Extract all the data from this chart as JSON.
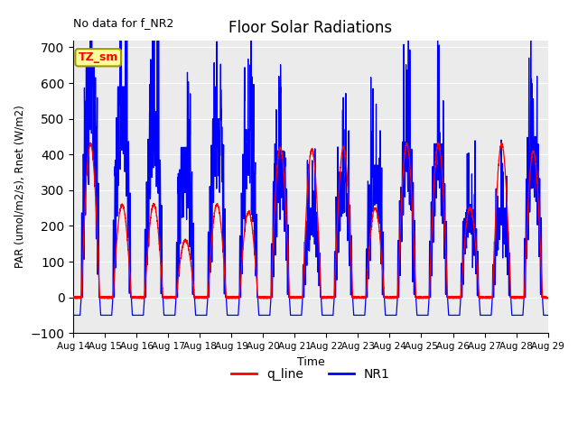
{
  "title": "Floor Solar Radiations",
  "top_left_text": "No data for f_NR2",
  "xlabel": "Time",
  "ylabel": "PAR (umol/m2/s), Rnet (W/m2)",
  "ylim": [
    -100,
    720
  ],
  "yticks": [
    -100,
    0,
    100,
    200,
    300,
    400,
    500,
    600,
    700
  ],
  "legend_entries": [
    "q_line",
    "NR1"
  ],
  "legend_colors": [
    "#ff0000",
    "#0000ff"
  ],
  "bg_color": "#ebebeb",
  "fig_bg": "#ffffff",
  "legend_box_label": "TZ_sm",
  "legend_box_facecolor": "#ffff99",
  "legend_box_edgecolor": "#999900",
  "start_day": 14,
  "end_day": 29,
  "num_days": 15,
  "points_per_day": 288,
  "red_peaks": [
    430,
    260,
    260,
    160,
    260,
    240,
    420,
    415,
    420,
    250,
    430,
    430,
    250,
    430,
    410
  ],
  "blue_peaks": [
    645,
    590,
    520,
    420,
    500,
    470,
    410,
    250,
    350,
    370,
    435,
    430,
    260,
    250,
    450
  ],
  "night_blue": -50
}
